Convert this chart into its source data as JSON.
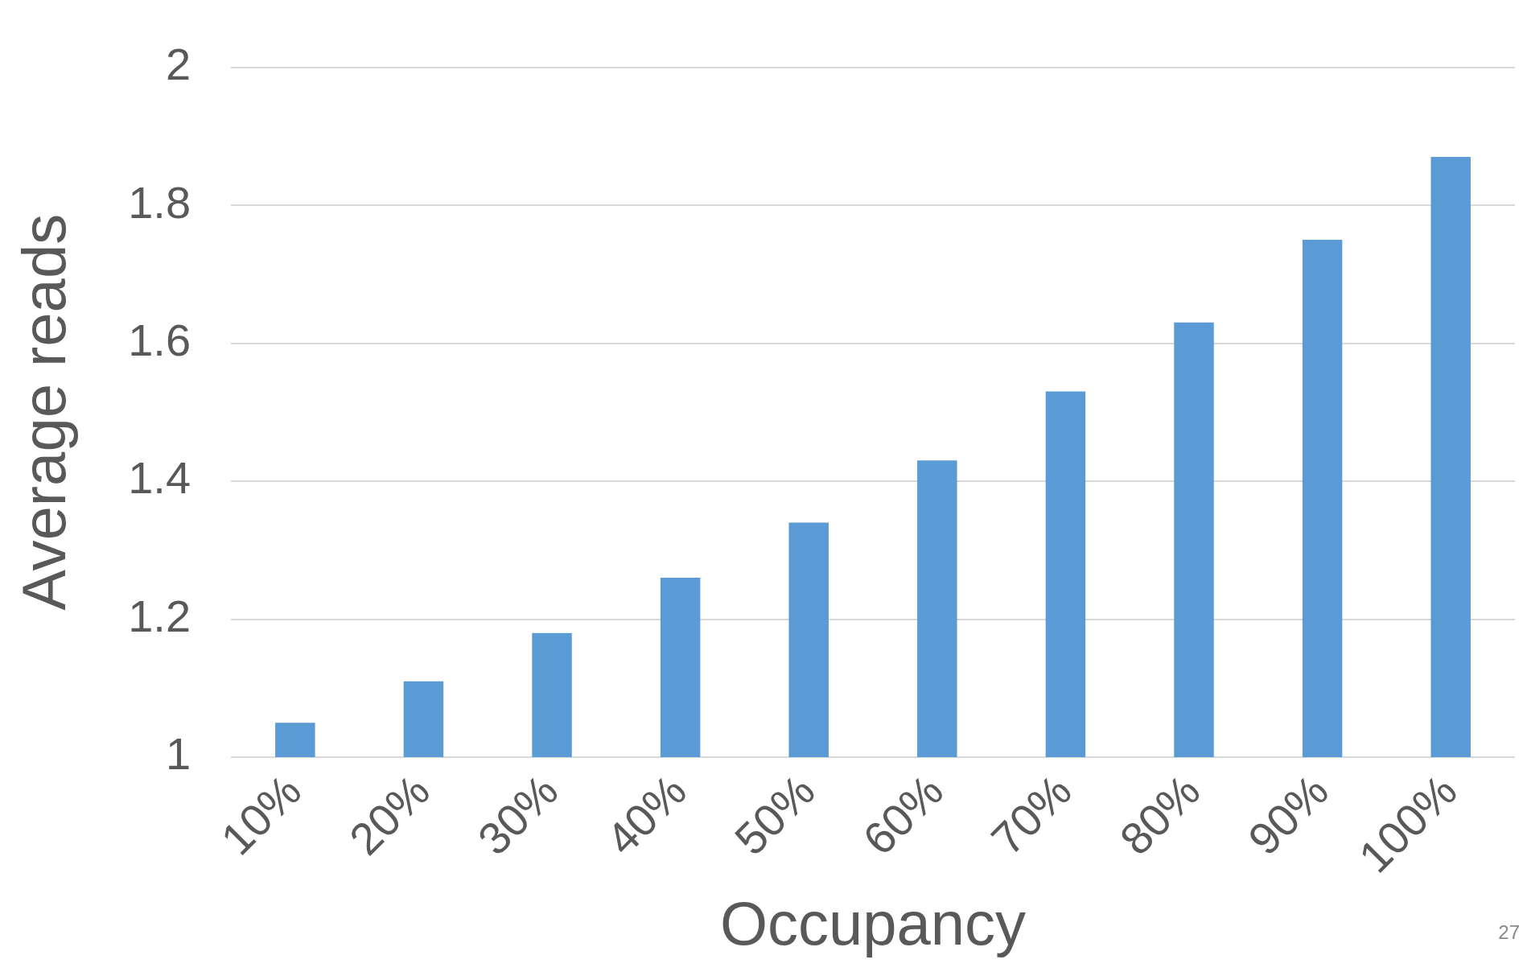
{
  "chart_data": {
    "type": "bar",
    "xlabel": "Occupancy",
    "ylabel": "Average reads",
    "categories": [
      "10%",
      "20%",
      "30%",
      "40%",
      "50%",
      "60%",
      "70%",
      "80%",
      "90%",
      "100%"
    ],
    "values": [
      1.05,
      1.11,
      1.18,
      1.26,
      1.34,
      1.43,
      1.53,
      1.63,
      1.75,
      1.87
    ],
    "color": "#5b9bd5",
    "ylim": [
      1,
      2
    ],
    "yticks": [
      1,
      1.2,
      1.4,
      1.6,
      1.8,
      2
    ],
    "grid": "y",
    "annotations": [
      "27"
    ]
  }
}
